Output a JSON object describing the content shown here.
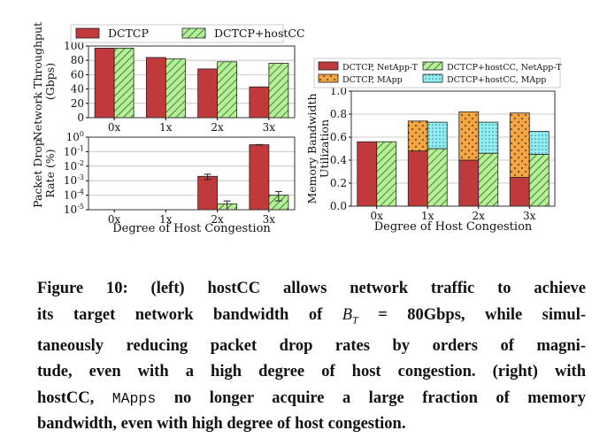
{
  "chart_data": [
    {
      "type": "bar",
      "title": "",
      "categories": [
        "0x",
        "1x",
        "2x",
        "3x"
      ],
      "xlabel": "",
      "ylabel": "Network Throughput (Gbps)",
      "ylabel_lines": [
        "Network Throughput",
        "(Gbps)"
      ],
      "ylim": [
        0,
        100
      ],
      "yticks": [
        "0",
        "20",
        "40",
        "60",
        "80",
        "100"
      ],
      "grid": true,
      "legend": "top",
      "series": [
        {
          "name": "DCTCP",
          "values": [
            97,
            84,
            68,
            43
          ],
          "color": "#c0393b",
          "pattern": "solid"
        },
        {
          "name": "DCTCP+hostCC",
          "values": [
            97,
            82,
            78,
            76
          ],
          "color": "#b6ef9a",
          "pattern": "hatch"
        }
      ]
    },
    {
      "type": "bar",
      "title": "",
      "categories": [
        "0x",
        "1x",
        "2x",
        "3x"
      ],
      "xlabel": "Degree of Host Congestion",
      "ylabel": "Packet Drop Rate (%)",
      "ylabel_lines": [
        "Packet Drop",
        "Rate (%)"
      ],
      "yscale": "log",
      "ylim": [
        1e-05,
        1
      ],
      "yticks": [
        {
          "base": "10",
          "exp": "0"
        },
        {
          "base": "10",
          "exp": "-1"
        },
        {
          "base": "10",
          "exp": "-2"
        },
        {
          "base": "10",
          "exp": "-3"
        },
        {
          "base": "10",
          "exp": "-4"
        },
        {
          "base": "10",
          "exp": "-5"
        }
      ],
      "grid": true,
      "series": [
        {
          "name": "DCTCP",
          "values": [
            null,
            null,
            0.002,
            0.3
          ],
          "err_hi": [
            null,
            null,
            0.0028,
            0.31
          ],
          "err_lo": [
            null,
            null,
            0.0012,
            0.29
          ]
        },
        {
          "name": "DCTCP+hostCC",
          "values": [
            null,
            null,
            2.5e-05,
            0.0001
          ],
          "err_hi": [
            null,
            null,
            4e-05,
            0.00018
          ],
          "err_lo": [
            null,
            null,
            1e-05,
            4e-05
          ]
        }
      ]
    },
    {
      "type": "bar",
      "stacked": true,
      "title": "",
      "categories": [
        "0x",
        "1x",
        "2x",
        "3x"
      ],
      "xlabel": "Degree of Host Congestion",
      "ylabel": "Memory Bandwidth Utilization",
      "ylabel_lines": [
        "Memory Bandwidth",
        "Utilization"
      ],
      "ylim": [
        0,
        1.0
      ],
      "yticks": [
        "0.0",
        "0.2",
        "0.4",
        "0.6",
        "0.8",
        "1.0"
      ],
      "grid": true,
      "legend": "top",
      "series": [
        {
          "name": "DCTCP, NetApp-T",
          "group": 0,
          "values": [
            0.56,
            0.48,
            0.4,
            0.25
          ],
          "color": "#c0393b",
          "pattern": "solid"
        },
        {
          "name": "DCTCP, MApp",
          "group": 0,
          "values": [
            0,
            0.26,
            0.42,
            0.56
          ],
          "color": "#f7a541",
          "pattern": "dots"
        },
        {
          "name": "DCTCP+hostCC, NetApp-T",
          "group": 1,
          "values": [
            0.56,
            0.5,
            0.46,
            0.45
          ],
          "color": "#b6ef9a",
          "pattern": "hatch"
        },
        {
          "name": "DCTCP+hostCC, MApp",
          "group": 1,
          "values": [
            0,
            0.23,
            0.27,
            0.2
          ],
          "color": "#8ff0f2",
          "pattern": "dots"
        }
      ]
    }
  ],
  "caption": {
    "line1": "Figure 10: (left) hostCC allows network traffic to achieve",
    "line2a": "its target network bandwidth of ",
    "math_var": "B",
    "math_sub": "T",
    "line2b": " = 80Gbps, while simul-",
    "line3": "taneously reducing packet drop rates by orders of magni-",
    "line4": "tude, even with a high degree of host congestion. (right) with",
    "line5a": "hostCC, ",
    "line5mono": "MApps",
    "line5b": " no longer acquire a large fraction of memory",
    "line6": "bandwidth, even with high degree of host congestion."
  }
}
